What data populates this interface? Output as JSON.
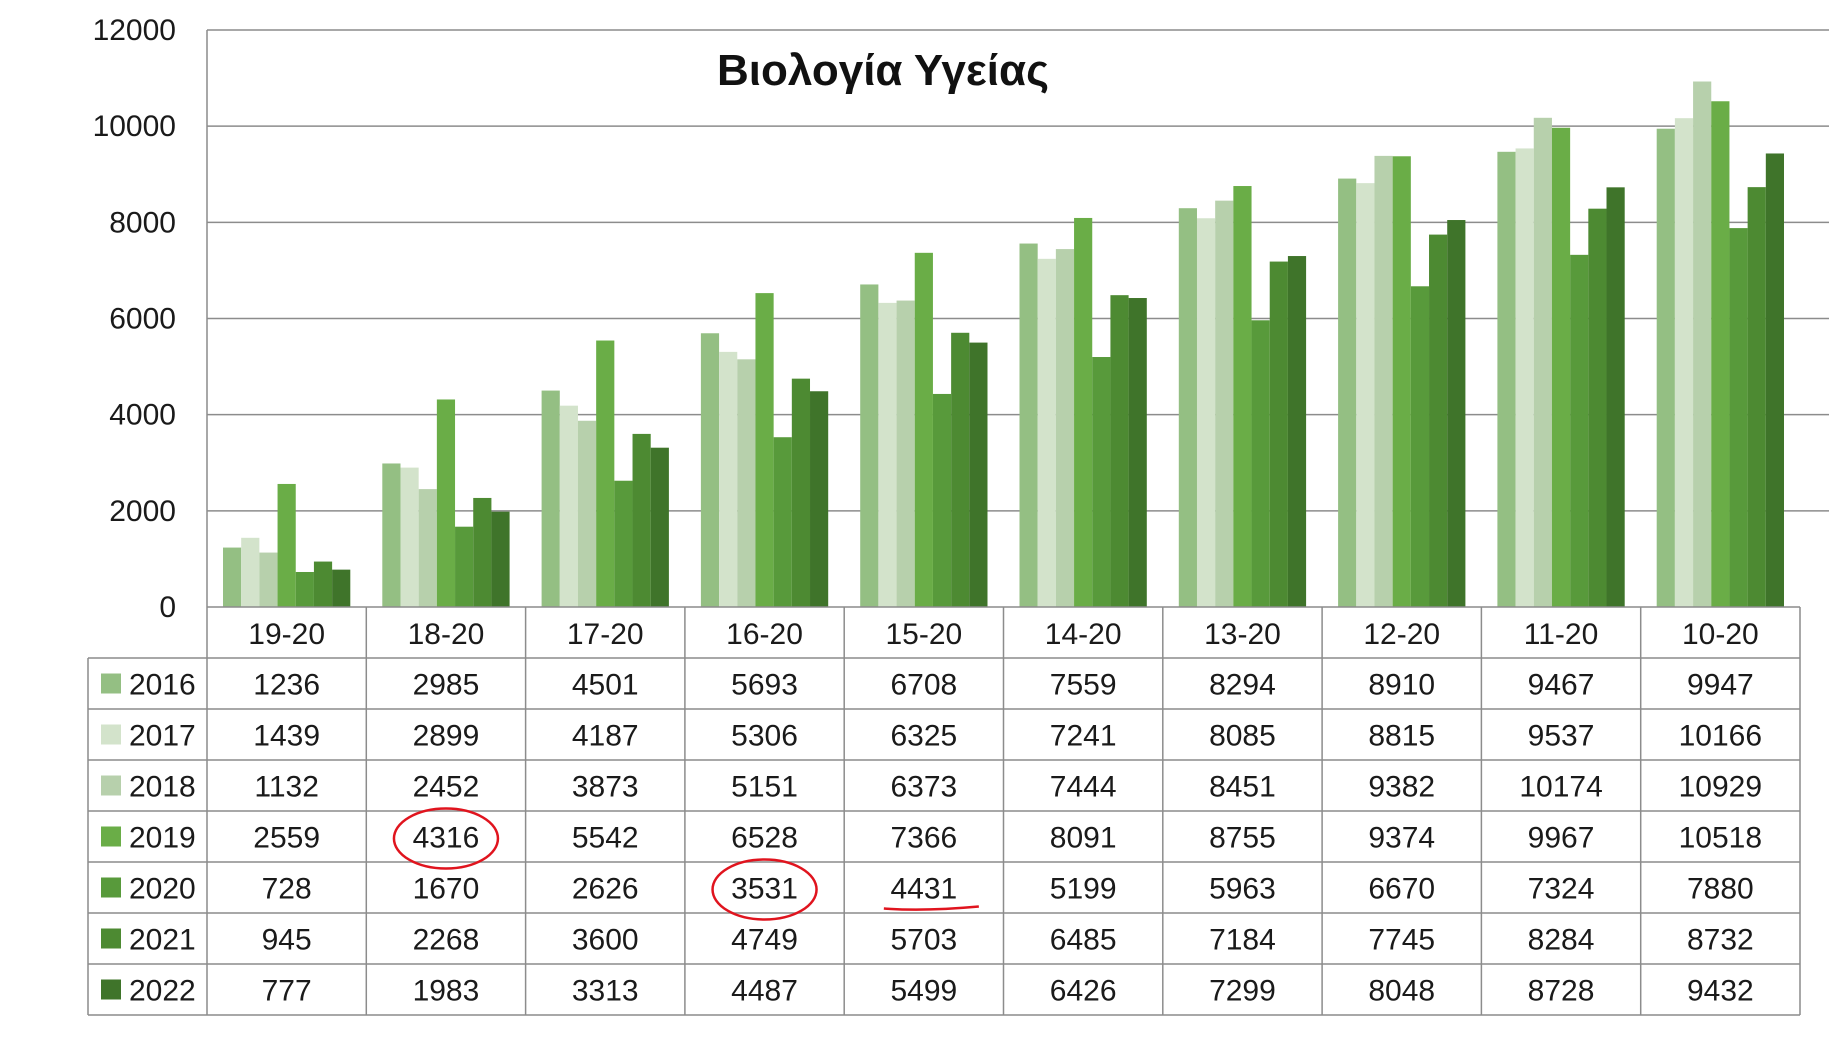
{
  "chart_data": {
    "type": "bar",
    "title": "Βιολογία Υγείας",
    "categories": [
      "19-20",
      "18-20",
      "17-20",
      "16-20",
      "15-20",
      "14-20",
      "13-20",
      "12-20",
      "11-20",
      "10-20"
    ],
    "ylim": [
      0,
      12000
    ],
    "y_ticks": [
      "0",
      "2000",
      "4000",
      "6000",
      "8000",
      "10000",
      "12000"
    ],
    "grid": true,
    "legend": "data-table",
    "series": [
      {
        "name": "2016",
        "color": "#94bf83",
        "values": [
          1236,
          2985,
          4501,
          5693,
          6708,
          7559,
          8294,
          8910,
          9467,
          9947
        ]
      },
      {
        "name": "2017",
        "color": "#d3e3cb",
        "values": [
          1439,
          2899,
          4187,
          5306,
          6325,
          7241,
          8085,
          8815,
          9537,
          10166
        ]
      },
      {
        "name": "2018",
        "color": "#b7d0ac",
        "values": [
          1132,
          2452,
          3873,
          5151,
          6373,
          7444,
          8451,
          9382,
          10174,
          10929
        ]
      },
      {
        "name": "2019",
        "color": "#6aad47",
        "values": [
          2559,
          4316,
          5542,
          6528,
          7366,
          8091,
          8755,
          9374,
          9967,
          10518
        ]
      },
      {
        "name": "2020",
        "color": "#589a3b",
        "values": [
          728,
          1670,
          2626,
          3531,
          4431,
          5199,
          5963,
          6670,
          7324,
          7880
        ]
      },
      {
        "name": "2021",
        "color": "#4d8a32",
        "values": [
          945,
          2268,
          3600,
          4749,
          5703,
          6485,
          7184,
          7745,
          8284,
          8732
        ]
      },
      {
        "name": "2022",
        "color": "#3f742a",
        "values": [
          777,
          1983,
          3313,
          4487,
          5499,
          6426,
          7299,
          8048,
          8728,
          9432
        ]
      }
    ],
    "annotations": [
      {
        "type": "circle",
        "series": "2019",
        "category": "18-20",
        "color": "#e0141e"
      },
      {
        "type": "circle",
        "series": "2020",
        "category": "16-20",
        "color": "#e0141e"
      },
      {
        "type": "underline",
        "series": "2020",
        "category": "15-20",
        "color": "#e0141e"
      }
    ]
  }
}
